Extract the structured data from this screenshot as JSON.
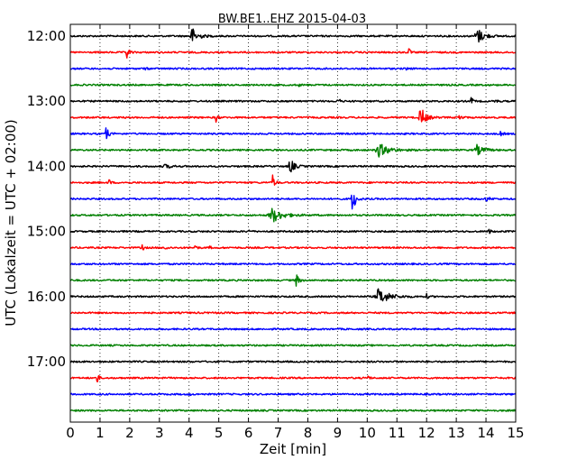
{
  "chart_data": {
    "type": "line",
    "title": "BW.BE1..EHZ 2015-04-03",
    "xlabel": "Zeit  [min]",
    "ylabel": "UTC (Lokalzeit = UTC + 02:00)",
    "xlim": [
      0,
      15
    ],
    "x_ticks": [
      "0",
      "1",
      "2",
      "3",
      "4",
      "5",
      "6",
      "7",
      "8",
      "9",
      "10",
      "11",
      "12",
      "13",
      "14",
      "15"
    ],
    "grid": "vertical-dotted",
    "y_ticks": [
      {
        "label": "12:00",
        "row": 0
      },
      {
        "label": "13:00",
        "row": 4
      },
      {
        "label": "14:00",
        "row": 8
      },
      {
        "label": "15:00",
        "row": 12
      },
      {
        "label": "16:00",
        "row": 16
      },
      {
        "label": "17:00",
        "row": 20
      }
    ],
    "colors": [
      "#000000",
      "#ff0000",
      "#0000ff",
      "#008000"
    ],
    "traces": [
      {
        "start": "12:00",
        "events": [
          [
            4.1,
            1.0,
            0.18
          ],
          [
            13.7,
            1.0,
            0.2
          ]
        ]
      },
      {
        "start": "12:15",
        "events": [
          [
            1.9,
            1.0,
            0.06
          ],
          [
            11.4,
            0.6,
            0.04
          ],
          [
            5.4,
            0.25,
            0.03
          ]
        ]
      },
      {
        "start": "12:30",
        "events": [
          [
            2.5,
            0.2,
            0.05
          ],
          [
            11.3,
            0.2,
            0.05
          ]
        ]
      },
      {
        "start": "12:45",
        "events": [
          [
            7.7,
            0.15,
            0.05
          ]
        ]
      },
      {
        "start": "13:00",
        "events": [
          [
            9.0,
            0.7,
            0.05
          ],
          [
            13.5,
            0.5,
            0.05
          ],
          [
            14.3,
            0.4,
            0.05
          ]
        ]
      },
      {
        "start": "13:15",
        "events": [
          [
            4.9,
            0.7,
            0.05
          ],
          [
            11.8,
            1.3,
            0.15
          ],
          [
            13.1,
            0.6,
            0.06
          ]
        ]
      },
      {
        "start": "13:30",
        "events": [
          [
            1.2,
            0.9,
            0.07
          ],
          [
            14.5,
            0.5,
            0.05
          ]
        ]
      },
      {
        "start": "13:45",
        "events": [
          [
            10.4,
            0.8,
            0.3
          ],
          [
            13.7,
            0.6,
            0.2
          ]
        ]
      },
      {
        "start": "14:00",
        "events": [
          [
            7.4,
            1.0,
            0.12
          ],
          [
            3.2,
            0.2,
            0.2
          ]
        ]
      },
      {
        "start": "14:15",
        "events": [
          [
            6.8,
            1.2,
            0.06
          ],
          [
            1.3,
            0.6,
            0.04
          ]
        ]
      },
      {
        "start": "14:30",
        "events": [
          [
            9.5,
            2.0,
            0.08
          ],
          [
            14.0,
            0.3,
            0.1
          ]
        ]
      },
      {
        "start": "14:45",
        "events": [
          [
            6.8,
            0.9,
            0.3
          ]
        ]
      },
      {
        "start": "15:00",
        "events": [
          [
            14.1,
            0.5,
            0.04
          ],
          [
            6.0,
            0.2,
            0.05
          ]
        ]
      },
      {
        "start": "15:15",
        "events": [
          [
            2.4,
            0.8,
            0.04
          ],
          [
            3.2,
            0.6,
            0.04
          ],
          [
            4.2,
            0.6,
            0.04
          ],
          [
            4.7,
            0.3,
            0.03
          ]
        ]
      },
      {
        "start": "15:30",
        "events": []
      },
      {
        "start": "15:45",
        "events": [
          [
            7.6,
            1.0,
            0.07
          ]
        ]
      },
      {
        "start": "16:00",
        "events": [
          [
            10.4,
            1.0,
            0.3
          ],
          [
            12.0,
            0.3,
            0.05
          ]
        ]
      },
      {
        "start": "16:15",
        "events": [
          [
            4.9,
            0.3,
            0.03
          ]
        ]
      },
      {
        "start": "16:30",
        "events": []
      },
      {
        "start": "16:45",
        "events": []
      },
      {
        "start": "17:00",
        "events": []
      },
      {
        "start": "17:15",
        "events": [
          [
            0.9,
            1.0,
            0.04
          ],
          [
            10.0,
            0.8,
            0.04
          ]
        ]
      },
      {
        "start": "17:30",
        "events": [
          [
            4.0,
            0.15,
            0.05
          ]
        ]
      },
      {
        "start": "17:45",
        "events": []
      }
    ]
  }
}
